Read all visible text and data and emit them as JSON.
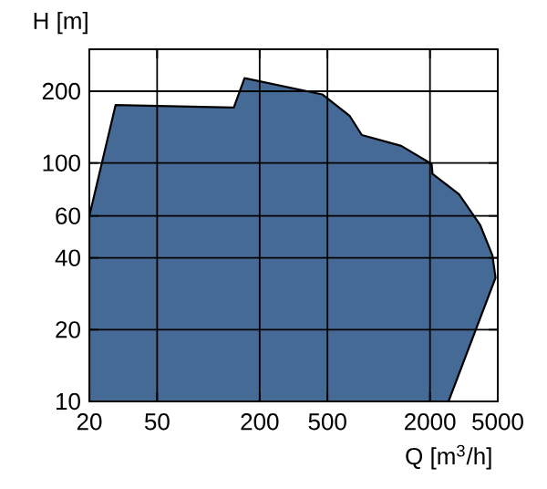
{
  "chart_data": {
    "type": "area",
    "xlabel": "Q [m$^{3}$/h]",
    "ylabel": "H [m]",
    "log": "xy",
    "grid": true,
    "xlim": [
      20,
      5000
    ],
    "xticks": [
      20,
      50,
      200,
      500,
      2000,
      5000
    ],
    "ylim": [
      10,
      300
    ],
    "yticks": [
      10,
      20,
      40,
      60,
      100,
      200
    ],
    "series": [
      {
        "color": "#456a96",
        "x": [
          20,
          20,
          28.5,
          141,
          163,
          466,
          674,
          796,
          1355,
          2045,
          2070,
          2960,
          3940,
          4650,
          4850,
          2570
        ],
        "values": [
          10,
          60,
          175,
          171,
          227,
          194,
          158,
          131,
          118,
          99,
          90,
          74,
          55,
          41,
          33,
          10
        ]
      }
    ]
  }
}
